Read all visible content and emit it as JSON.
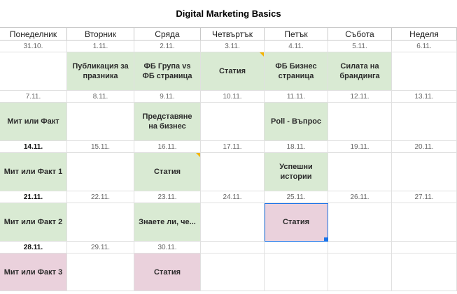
{
  "title": "Digital Marketing Basics",
  "colors": {
    "green_cell": "#d9ead3",
    "pink_cell": "#ead1dc",
    "selection": "#1a73e8",
    "comment_flag": "#f4b400"
  },
  "days": [
    "Понеделник",
    "Вторник",
    "Сряда",
    "Четвъртък",
    "Петък",
    "Събота",
    "Неделя"
  ],
  "weeks": [
    {
      "dates": [
        "31.10.",
        "1.11.",
        "2.11.",
        "3.11.",
        "4.11.",
        "5.11.",
        "6.11."
      ],
      "tasks": [
        "",
        "Публикация за празника",
        "ФБ Група vs ФБ страница",
        "Статия",
        "ФБ Бизнес страница",
        "Силата на брандинга",
        ""
      ]
    },
    {
      "dates": [
        "7.11.",
        "8.11.",
        "9.11.",
        "10.11.",
        "11.11.",
        "12.11.",
        "13.11."
      ],
      "tasks": [
        "Мит или Факт",
        "",
        "Представяне на бизнес",
        "",
        "Poll - Въпрос",
        "",
        ""
      ]
    },
    {
      "dates": [
        "14.11.",
        "15.11.",
        "16.11.",
        "17.11.",
        "18.11.",
        "19.11.",
        "20.11."
      ],
      "tasks": [
        "Мит или Факт 1",
        "",
        "Статия",
        "",
        "Успешни истории",
        "",
        ""
      ]
    },
    {
      "dates": [
        "21.11.",
        "22.11.",
        "23.11.",
        "24.11.",
        "25.11.",
        "26.11.",
        "27.11."
      ],
      "tasks": [
        "Мит или Факт 2",
        "",
        "Знаете ли, че...",
        "",
        "Статия",
        "",
        ""
      ]
    },
    {
      "dates": [
        "28.11.",
        "29.11.",
        "30.11.",
        "",
        "",
        "",
        ""
      ],
      "tasks": [
        "Мит или Факт 3",
        "",
        "Статия",
        "",
        "",
        "",
        ""
      ]
    }
  ]
}
